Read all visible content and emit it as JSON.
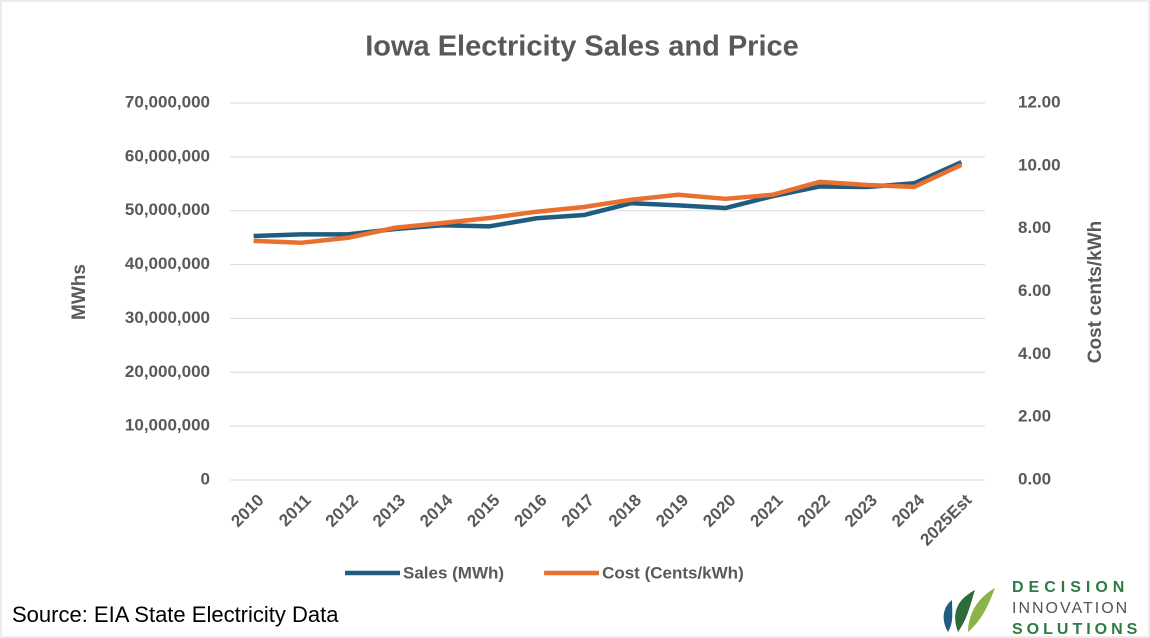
{
  "chart_data": {
    "type": "line",
    "title": "Iowa Electricity Sales and Price",
    "y_label": "MWhs",
    "y2_label": "Cost cents/kWh",
    "categories": [
      "2010",
      "2011",
      "2012",
      "2013",
      "2014",
      "2015",
      "2016",
      "2017",
      "2018",
      "2019",
      "2020",
      "2021",
      "2022",
      "2023",
      "2024",
      "2025Est"
    ],
    "series": [
      {
        "name": "Sales (MWh)",
        "color": "#1f5c7f",
        "axis": "y",
        "values": [
          45300000,
          45600000,
          45600000,
          46600000,
          47300000,
          47100000,
          48600000,
          49200000,
          51400000,
          51000000,
          50500000,
          52700000,
          54500000,
          54400000,
          55100000,
          59000000
        ]
      },
      {
        "name": "Cost (Cents/kWh)",
        "color": "#ea7030",
        "axis": "y2",
        "values": [
          7.61,
          7.55,
          7.71,
          8.03,
          8.18,
          8.34,
          8.54,
          8.69,
          8.92,
          9.08,
          8.95,
          9.08,
          9.49,
          9.39,
          9.33,
          10.03
        ]
      }
    ],
    "ylim": [
      0,
      70000000
    ],
    "yticks": [
      0,
      {
        "value": 10000000,
        "label": "10,000,000"
      },
      {
        "value": 20000000,
        "label": "20,000,000"
      },
      {
        "value": 30000000,
        "label": "30,000,000"
      },
      {
        "value": 40000000,
        "label": "40,000,000"
      },
      {
        "value": 50000000,
        "label": "50,000,000"
      },
      {
        "value": 60000000,
        "label": "60,000,000"
      },
      {
        "value": 70000000,
        "label": "70,000,000"
      }
    ],
    "y2lim": [
      0,
      12
    ],
    "y2ticks": [
      {
        "value": 0,
        "label": "0.00"
      },
      {
        "value": 2,
        "label": "2.00"
      },
      {
        "value": 4,
        "label": "4.00"
      },
      {
        "value": 6,
        "label": "6.00"
      },
      {
        "value": 8,
        "label": "8.00"
      },
      {
        "value": 10,
        "label": "10.00"
      },
      {
        "value": 12,
        "label": "12.00"
      }
    ],
    "grid": true,
    "legend": "bottom"
  },
  "source": "Source: EIA State Electricity Data",
  "logo": [
    "DECISION",
    "INNOVATION",
    "SOLUTIONS"
  ]
}
